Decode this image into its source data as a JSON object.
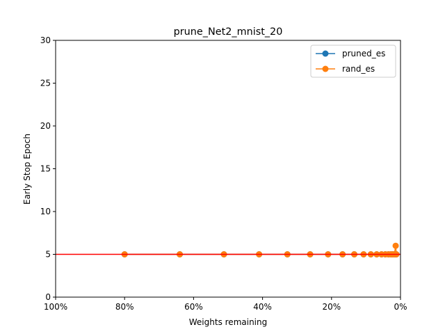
{
  "chart_data": {
    "type": "line",
    "title": "prune_Net2_mnist_20",
    "xlabel": "Weights remaining",
    "ylabel": "Early Stop Epoch",
    "xlim": [
      100,
      0
    ],
    "ylim": [
      0,
      30
    ],
    "x_ticks": [
      {
        "value": 100,
        "label": "100%"
      },
      {
        "value": 80,
        "label": "80%"
      },
      {
        "value": 60,
        "label": "60%"
      },
      {
        "value": 40,
        "label": "40%"
      },
      {
        "value": 20,
        "label": "20%"
      },
      {
        "value": 0,
        "label": "0%"
      }
    ],
    "y_ticks": [
      {
        "value": 0,
        "label": "0"
      },
      {
        "value": 5,
        "label": "5"
      },
      {
        "value": 10,
        "label": "10"
      },
      {
        "value": 15,
        "label": "15"
      },
      {
        "value": 20,
        "label": "20"
      },
      {
        "value": 25,
        "label": "25"
      },
      {
        "value": 30,
        "label": "30"
      }
    ],
    "legend_position": "top-right",
    "reference_line": {
      "y": 5,
      "color": "#ff0000"
    },
    "series": [
      {
        "name": "pruned_es",
        "color": "#1f77b4",
        "x": [
          80.0,
          64.0,
          51.2,
          41.0,
          32.8,
          26.2,
          21.0,
          16.8,
          13.4,
          10.7,
          8.6,
          6.9,
          5.5,
          4.4,
          3.5,
          2.8,
          2.3,
          1.8,
          1.4,
          1.2
        ],
        "y": [
          5,
          5,
          5,
          5,
          5,
          5,
          5,
          5,
          5,
          5,
          5,
          5,
          5,
          5,
          5,
          5,
          5,
          5,
          5,
          5
        ]
      },
      {
        "name": "rand_es",
        "color": "#ff7f0e",
        "x": [
          80.0,
          64.0,
          51.2,
          41.0,
          32.8,
          26.2,
          21.0,
          16.8,
          13.4,
          10.7,
          8.6,
          6.9,
          5.5,
          4.4,
          3.5,
          2.8,
          2.3,
          1.8,
          1.4,
          1.2
        ],
        "y": [
          5,
          5,
          5,
          5,
          5,
          5,
          5,
          5,
          5,
          5,
          5,
          5,
          5,
          5,
          5,
          5,
          5,
          5,
          6,
          5
        ]
      }
    ]
  }
}
